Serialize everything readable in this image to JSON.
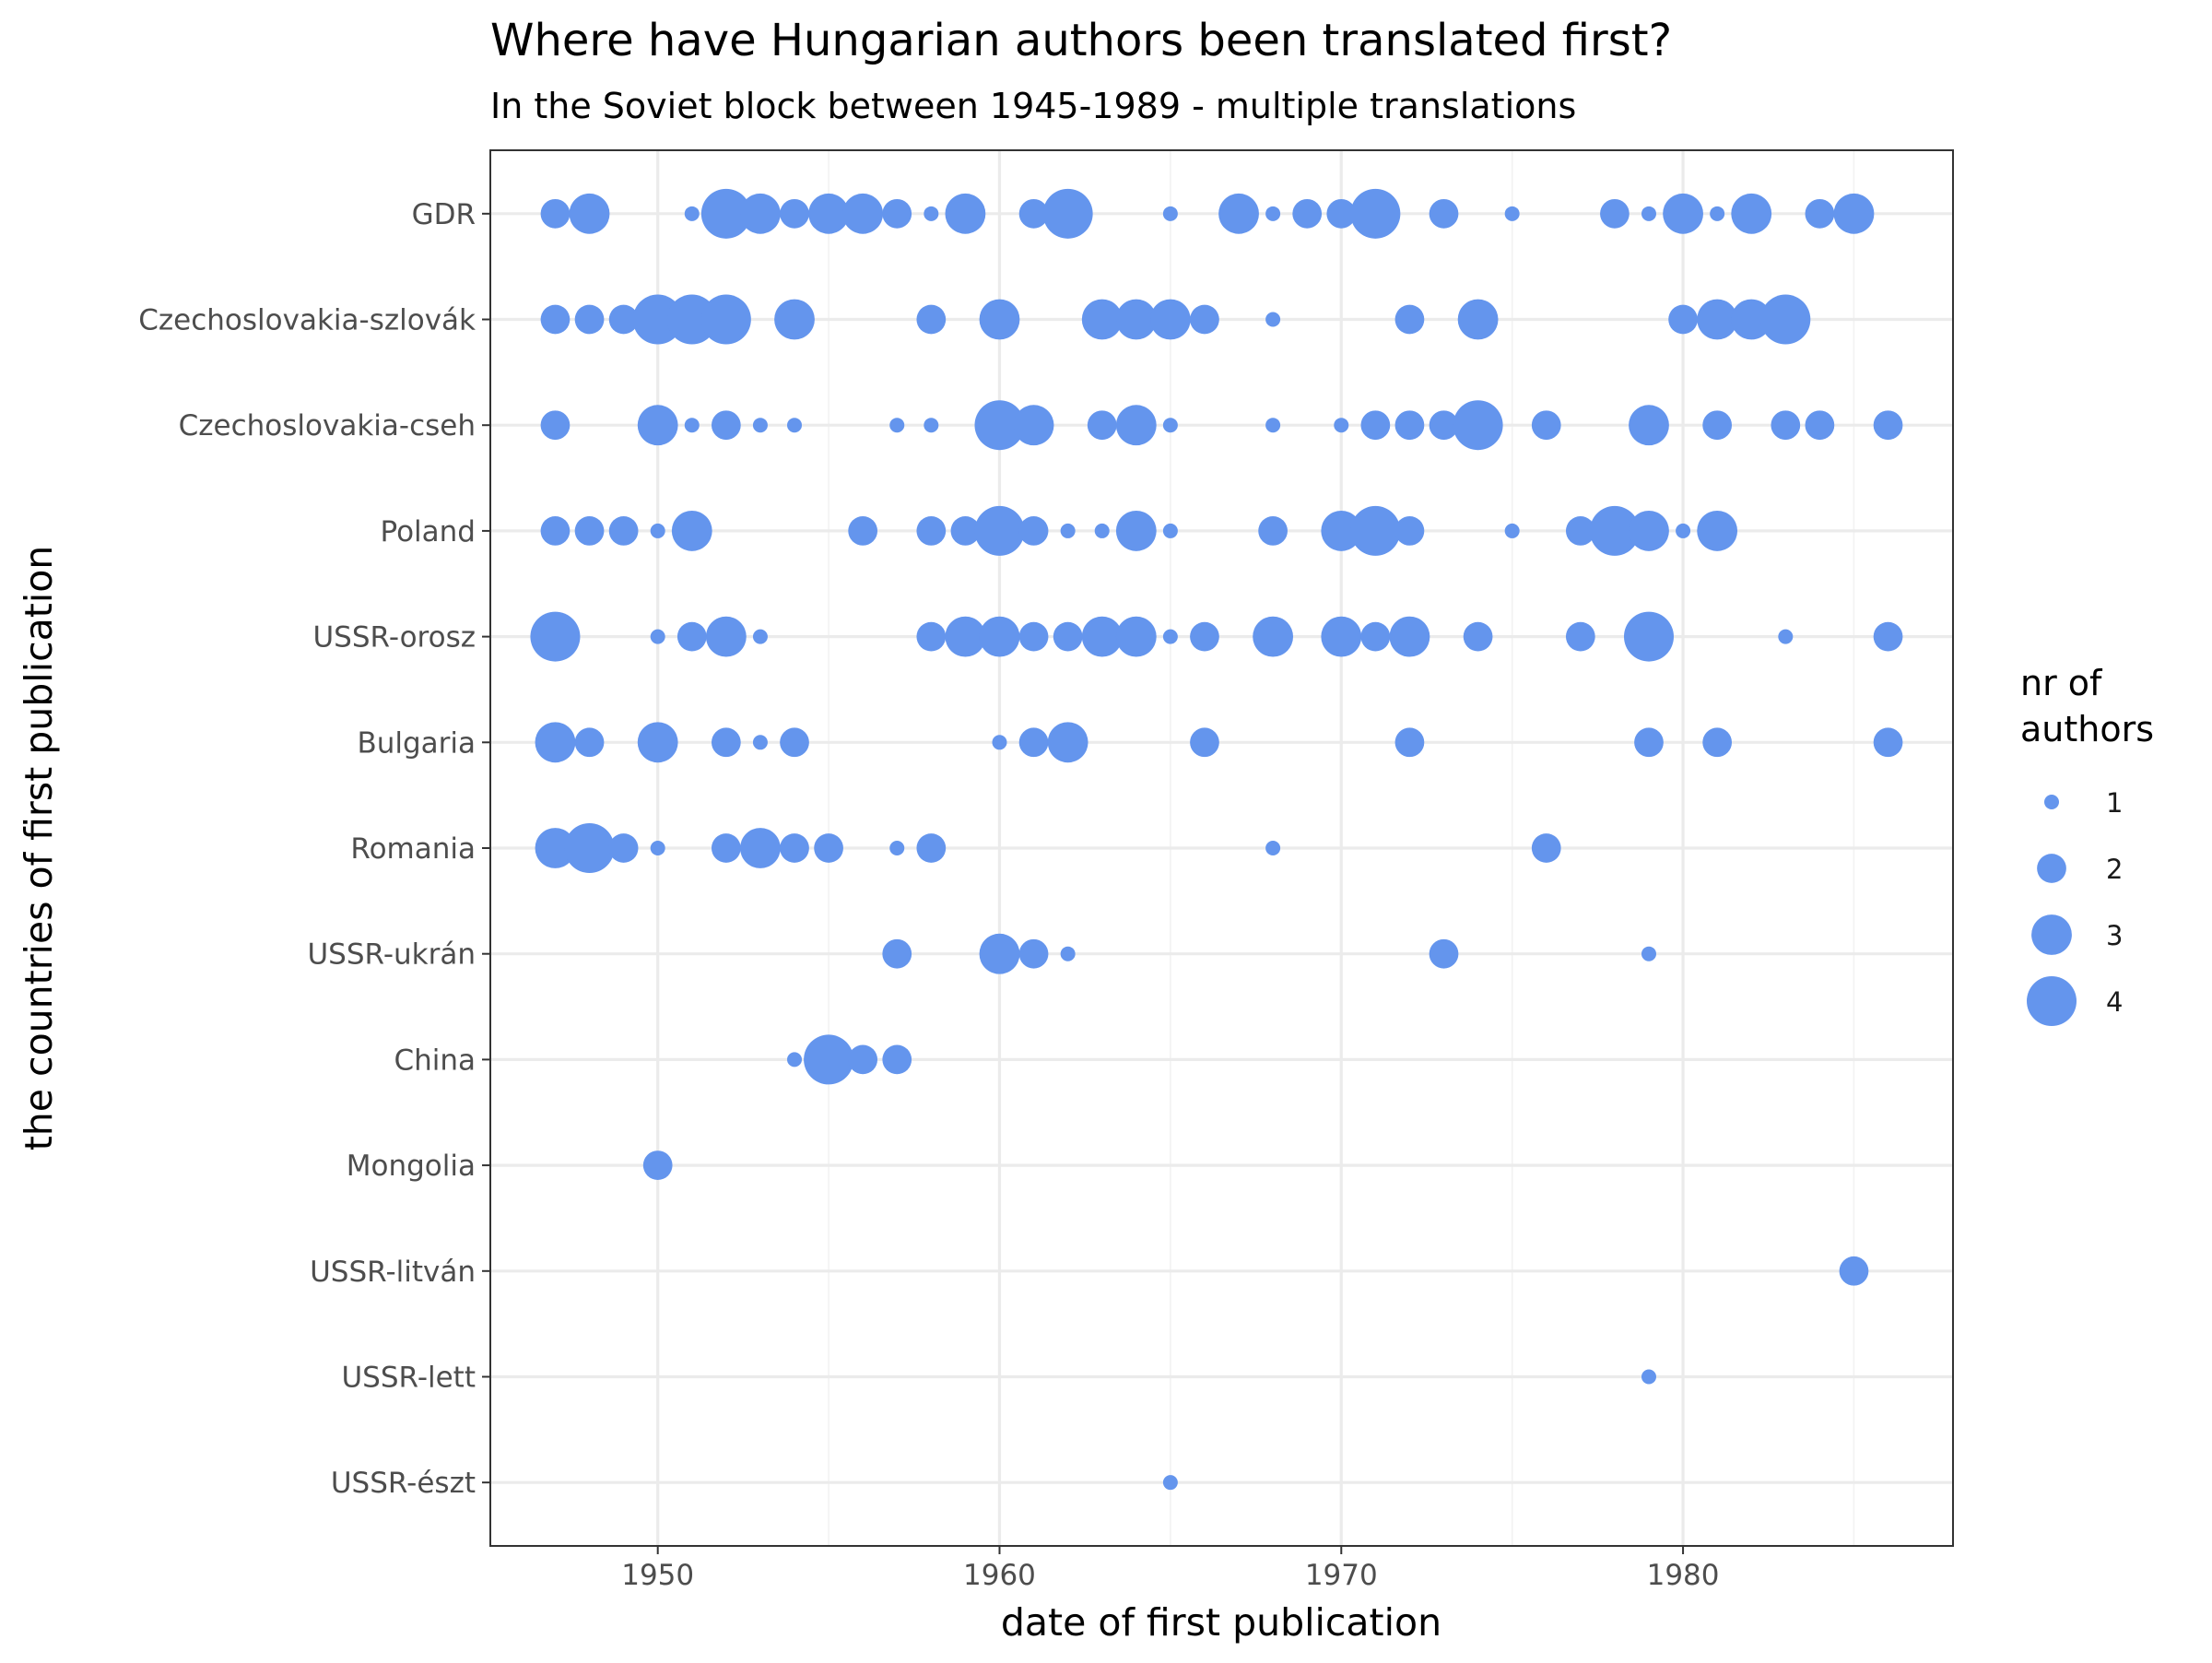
{
  "chart_data": {
    "type": "scatter",
    "title": "Where have Hungarian authors been translated first?",
    "subtitle": "In the Soviet block between 1945-1989 - multiple translations",
    "xlabel": "date of first publication",
    "ylabel": "the countries of first publication",
    "xlim": [
      1945.1,
      1987.9
    ],
    "xticks": [
      1950,
      1960,
      1970,
      1980
    ],
    "grid": true,
    "point_color": "#6495ED",
    "categories": [
      "GDR",
      "Czechoslovakia-szlovák",
      "Czechoslovakia-cseh",
      "Poland",
      "USSR-orosz",
      "Bulgaria",
      "Romania",
      "USSR-ukrán",
      "China",
      "Mongolia",
      "USSR-litván",
      "USSR-lett",
      "USSR-észt"
    ],
    "legend": {
      "title": [
        "nr of",
        "authors"
      ],
      "position": "right",
      "sizes": [
        1,
        2,
        3,
        4
      ]
    },
    "size_range": [
      1,
      4
    ],
    "series": [
      {
        "category": "GDR",
        "points": [
          [
            1947,
            2
          ],
          [
            1948,
            3
          ],
          [
            1951,
            1
          ],
          [
            1952,
            4
          ],
          [
            1953,
            3
          ],
          [
            1954,
            2
          ],
          [
            1955,
            3
          ],
          [
            1956,
            3
          ],
          [
            1957,
            2
          ],
          [
            1958,
            1
          ],
          [
            1959,
            3
          ],
          [
            1961,
            2
          ],
          [
            1962,
            4
          ],
          [
            1965,
            1
          ],
          [
            1967,
            3
          ],
          [
            1968,
            1
          ],
          [
            1969,
            2
          ],
          [
            1970,
            2
          ],
          [
            1971,
            4
          ],
          [
            1973,
            2
          ],
          [
            1975,
            1
          ],
          [
            1978,
            2
          ],
          [
            1979,
            1
          ],
          [
            1980,
            3
          ],
          [
            1981,
            1
          ],
          [
            1982,
            3
          ],
          [
            1984,
            2
          ],
          [
            1985,
            3
          ]
        ]
      },
      {
        "category": "Czechoslovakia-szlovák",
        "points": [
          [
            1947,
            2
          ],
          [
            1948,
            2
          ],
          [
            1949,
            2
          ],
          [
            1950,
            4
          ],
          [
            1951,
            4
          ],
          [
            1952,
            4
          ],
          [
            1954,
            3
          ],
          [
            1958,
            2
          ],
          [
            1960,
            3
          ],
          [
            1963,
            3
          ],
          [
            1964,
            3
          ],
          [
            1965,
            3
          ],
          [
            1966,
            2
          ],
          [
            1968,
            1
          ],
          [
            1972,
            2
          ],
          [
            1974,
            3
          ],
          [
            1980,
            2
          ],
          [
            1981,
            3
          ],
          [
            1982,
            3
          ],
          [
            1983,
            4
          ]
        ]
      },
      {
        "category": "Czechoslovakia-cseh",
        "points": [
          [
            1947,
            2
          ],
          [
            1950,
            3
          ],
          [
            1951,
            1
          ],
          [
            1952,
            2
          ],
          [
            1953,
            1
          ],
          [
            1954,
            1
          ],
          [
            1957,
            1
          ],
          [
            1958,
            1
          ],
          [
            1960,
            4
          ],
          [
            1961,
            3
          ],
          [
            1963,
            2
          ],
          [
            1964,
            3
          ],
          [
            1965,
            1
          ],
          [
            1968,
            1
          ],
          [
            1970,
            1
          ],
          [
            1971,
            2
          ],
          [
            1972,
            2
          ],
          [
            1973,
            2
          ],
          [
            1974,
            4
          ],
          [
            1976,
            2
          ],
          [
            1979,
            3
          ],
          [
            1981,
            2
          ],
          [
            1983,
            2
          ],
          [
            1984,
            2
          ],
          [
            1986,
            2
          ]
        ]
      },
      {
        "category": "Poland",
        "points": [
          [
            1947,
            2
          ],
          [
            1948,
            2
          ],
          [
            1949,
            2
          ],
          [
            1950,
            1
          ],
          [
            1951,
            3
          ],
          [
            1956,
            2
          ],
          [
            1958,
            2
          ],
          [
            1959,
            2
          ],
          [
            1960,
            4
          ],
          [
            1961,
            2
          ],
          [
            1962,
            1
          ],
          [
            1963,
            1
          ],
          [
            1964,
            3
          ],
          [
            1965,
            1
          ],
          [
            1968,
            2
          ],
          [
            1970,
            3
          ],
          [
            1971,
            4
          ],
          [
            1972,
            2
          ],
          [
            1975,
            1
          ],
          [
            1977,
            2
          ],
          [
            1978,
            4
          ],
          [
            1979,
            3
          ],
          [
            1980,
            1
          ],
          [
            1981,
            3
          ]
        ]
      },
      {
        "category": "USSR-orosz",
        "points": [
          [
            1947,
            4
          ],
          [
            1950,
            1
          ],
          [
            1951,
            2
          ],
          [
            1952,
            3
          ],
          [
            1953,
            1
          ],
          [
            1958,
            2
          ],
          [
            1959,
            3
          ],
          [
            1960,
            3
          ],
          [
            1961,
            2
          ],
          [
            1962,
            2
          ],
          [
            1963,
            3
          ],
          [
            1964,
            3
          ],
          [
            1965,
            1
          ],
          [
            1966,
            2
          ],
          [
            1968,
            3
          ],
          [
            1970,
            3
          ],
          [
            1971,
            2
          ],
          [
            1972,
            3
          ],
          [
            1974,
            2
          ],
          [
            1977,
            2
          ],
          [
            1979,
            4
          ],
          [
            1983,
            1
          ],
          [
            1986,
            2
          ]
        ]
      },
      {
        "category": "Bulgaria",
        "points": [
          [
            1947,
            3
          ],
          [
            1948,
            2
          ],
          [
            1950,
            3
          ],
          [
            1952,
            2
          ],
          [
            1953,
            1
          ],
          [
            1954,
            2
          ],
          [
            1960,
            1
          ],
          [
            1961,
            2
          ],
          [
            1962,
            3
          ],
          [
            1966,
            2
          ],
          [
            1972,
            2
          ],
          [
            1979,
            2
          ],
          [
            1981,
            2
          ],
          [
            1986,
            2
          ]
        ]
      },
      {
        "category": "Romania",
        "points": [
          [
            1947,
            3
          ],
          [
            1948,
            4
          ],
          [
            1949,
            2
          ],
          [
            1950,
            1
          ],
          [
            1952,
            2
          ],
          [
            1953,
            3
          ],
          [
            1954,
            2
          ],
          [
            1955,
            2
          ],
          [
            1957,
            1
          ],
          [
            1958,
            2
          ],
          [
            1968,
            1
          ],
          [
            1976,
            2
          ]
        ]
      },
      {
        "category": "USSR-ukrán",
        "points": [
          [
            1957,
            2
          ],
          [
            1960,
            3
          ],
          [
            1961,
            2
          ],
          [
            1962,
            1
          ],
          [
            1973,
            2
          ],
          [
            1979,
            1
          ]
        ]
      },
      {
        "category": "China",
        "points": [
          [
            1954,
            1
          ],
          [
            1955,
            4
          ],
          [
            1956,
            2
          ],
          [
            1957,
            2
          ]
        ]
      },
      {
        "category": "Mongolia",
        "points": [
          [
            1950,
            2
          ]
        ]
      },
      {
        "category": "USSR-litván",
        "points": [
          [
            1985,
            2
          ]
        ]
      },
      {
        "category": "USSR-lett",
        "points": [
          [
            1979,
            1
          ]
        ]
      },
      {
        "category": "USSR-észt",
        "points": [
          [
            1965,
            1
          ]
        ]
      }
    ]
  }
}
